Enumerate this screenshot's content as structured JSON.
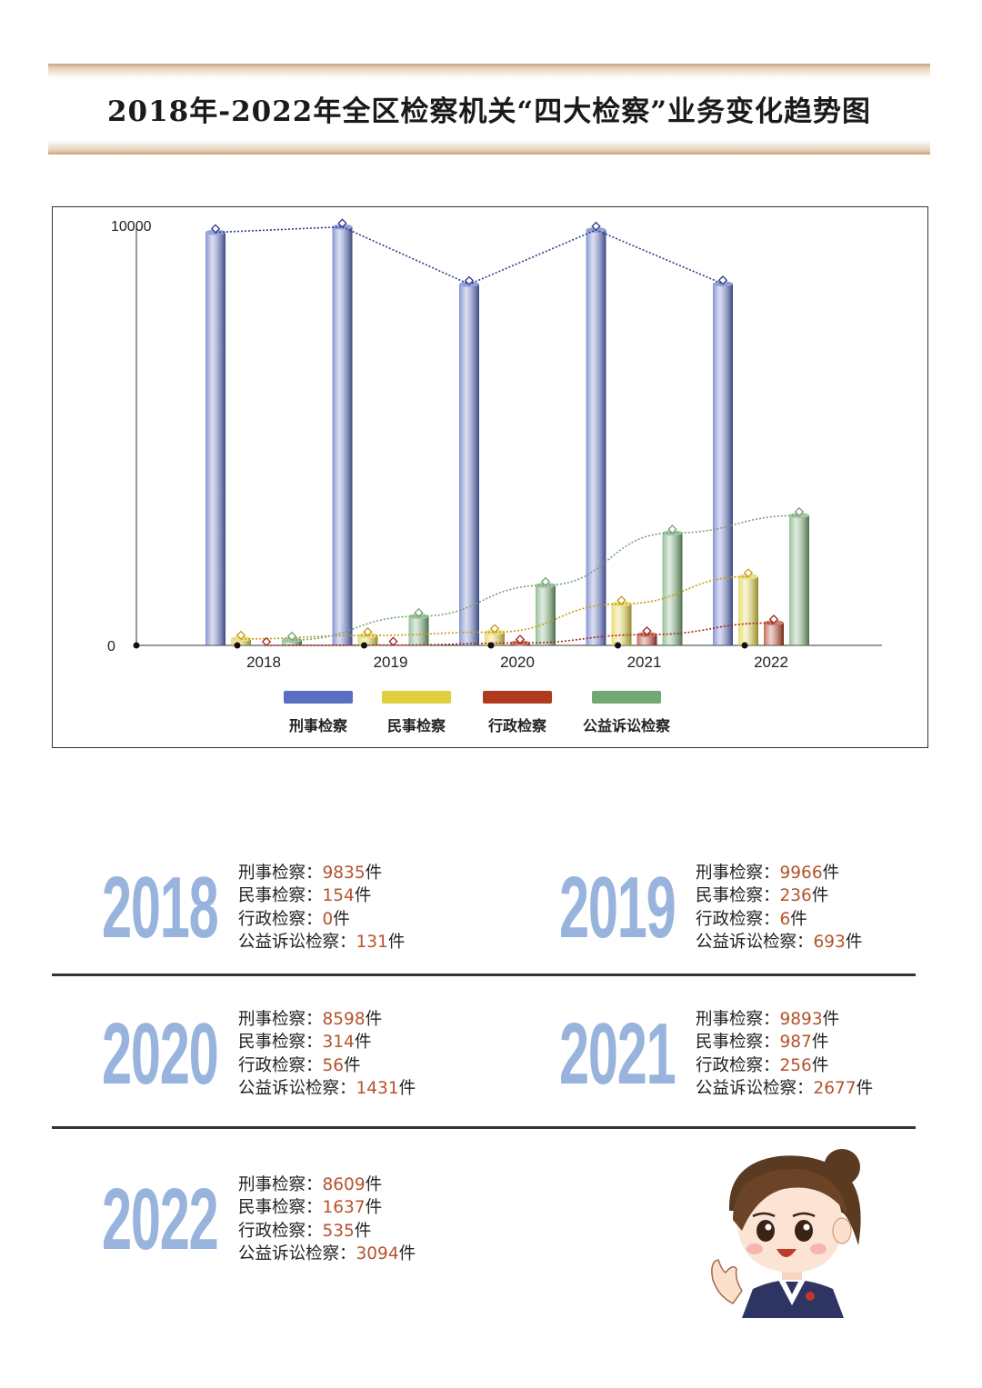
{
  "title": "2018年-2022年全区检察机关“四大检察”业务变化趋势图",
  "chart_data": {
    "type": "bar",
    "categories": [
      "2018",
      "2019",
      "2020",
      "2021",
      "2022"
    ],
    "ylim": [
      0,
      10000
    ],
    "y_ticks": [
      "0",
      "10000"
    ],
    "series": [
      {
        "name": "刑事检察",
        "color": "#5a6fc4",
        "values": [
          9835,
          9966,
          8598,
          9893,
          8609
        ]
      },
      {
        "name": "民事检察",
        "color": "#e0cf3f",
        "values": [
          154,
          236,
          314,
          987,
          1637
        ]
      },
      {
        "name": "行政检察",
        "color": "#b03a1e",
        "values": [
          0,
          6,
          56,
          256,
          535
        ]
      },
      {
        "name": "公益诉讼检察",
        "color": "#72a872",
        "values": [
          131,
          693,
          1431,
          2677,
          3094
        ]
      }
    ],
    "legend_position": "bottom",
    "trend_lines": true
  },
  "stats": [
    {
      "year": "2018",
      "items": [
        {
          "label": "刑事检察：",
          "value": "9835",
          "unit": "件"
        },
        {
          "label": "民事检察：",
          "value": "154",
          "unit": "件"
        },
        {
          "label": "行政检察：",
          "value": "0",
          "unit": "件"
        },
        {
          "label": "公益诉讼检察：",
          "value": "131",
          "unit": "件"
        }
      ]
    },
    {
      "year": "2019",
      "items": [
        {
          "label": "刑事检察：",
          "value": "9966",
          "unit": "件"
        },
        {
          "label": "民事检察：",
          "value": "236",
          "unit": "件"
        },
        {
          "label": "行政检察：",
          "value": "6",
          "unit": "件"
        },
        {
          "label": "公益诉讼检察：",
          "value": "693",
          "unit": "件"
        }
      ]
    },
    {
      "year": "2020",
      "items": [
        {
          "label": "刑事检察：",
          "value": "8598",
          "unit": "件"
        },
        {
          "label": "民事检察：",
          "value": "314",
          "unit": "件"
        },
        {
          "label": "行政检察：",
          "value": "56",
          "unit": "件"
        },
        {
          "label": "公益诉讼检察：",
          "value": "1431",
          "unit": "件"
        }
      ]
    },
    {
      "year": "2021",
      "items": [
        {
          "label": "刑事检察：",
          "value": "9893",
          "unit": "件"
        },
        {
          "label": "民事检察：",
          "value": "987",
          "unit": "件"
        },
        {
          "label": "行政检察：",
          "value": "256",
          "unit": "件"
        },
        {
          "label": "公益诉讼检察：",
          "value": "2677",
          "unit": "件"
        }
      ]
    },
    {
      "year": "2022",
      "items": [
        {
          "label": "刑事检察：",
          "value": "8609",
          "unit": "件"
        },
        {
          "label": "民事检察：",
          "value": "1637",
          "unit": "件"
        },
        {
          "label": "行政检察：",
          "value": "535",
          "unit": "件"
        },
        {
          "label": "公益诉讼检察：",
          "value": "3094",
          "unit": "件"
        }
      ]
    }
  ],
  "illustration": "prosecutor-cartoon-avatar"
}
